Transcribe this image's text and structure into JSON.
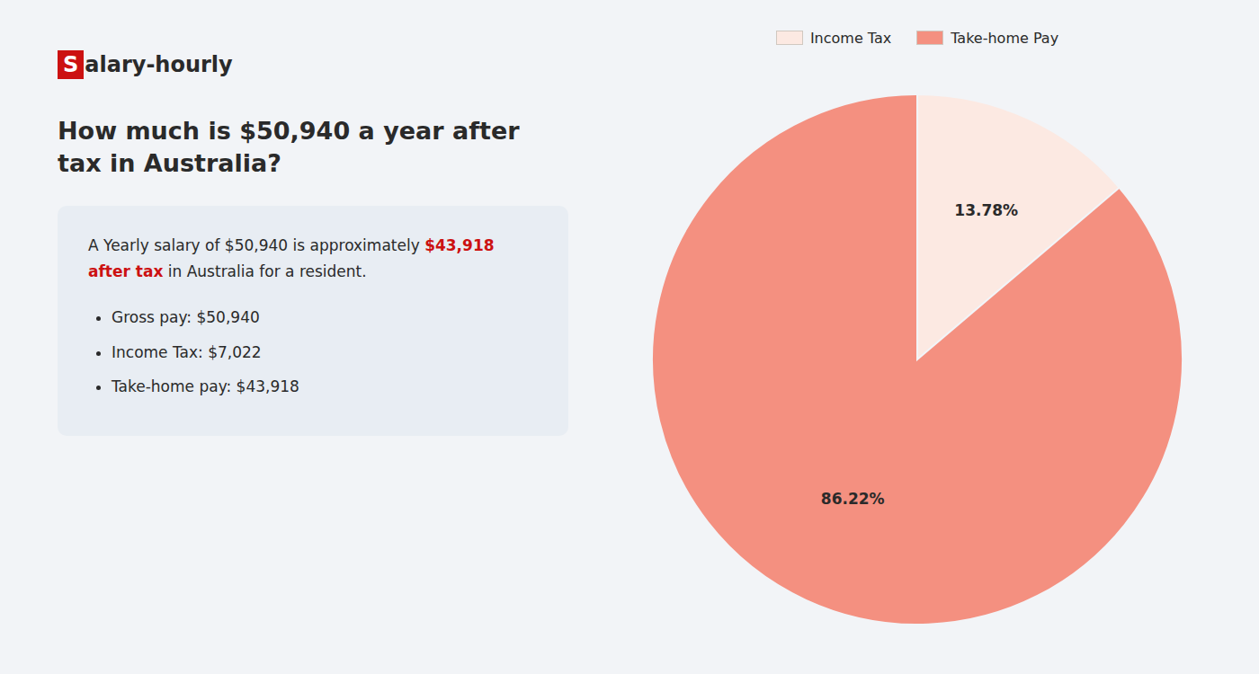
{
  "chart_data": {
    "type": "pie",
    "title": "How much is $50,940 a year after tax in Australia?",
    "annotations": [
      "S",
      "alary-hourly",
      "A Yearly salary of $50,940 is approximately ",
      "$43,918 after tax",
      " in",
      "Australia for a resident.",
      "Gross pay: $50,940",
      "Income Tax: $7,022",
      "Take-home pay: $43,918"
    ],
    "categories": [
      "Income Tax",
      "Take-home Pay"
    ],
    "values": [
      13.78,
      86.22
    ],
    "value_labels": [
      "13.78%",
      "86.22%"
    ],
    "colors": [
      "#fce9e2",
      "#f49080"
    ],
    "data_labels": true,
    "legend": "top"
  }
}
